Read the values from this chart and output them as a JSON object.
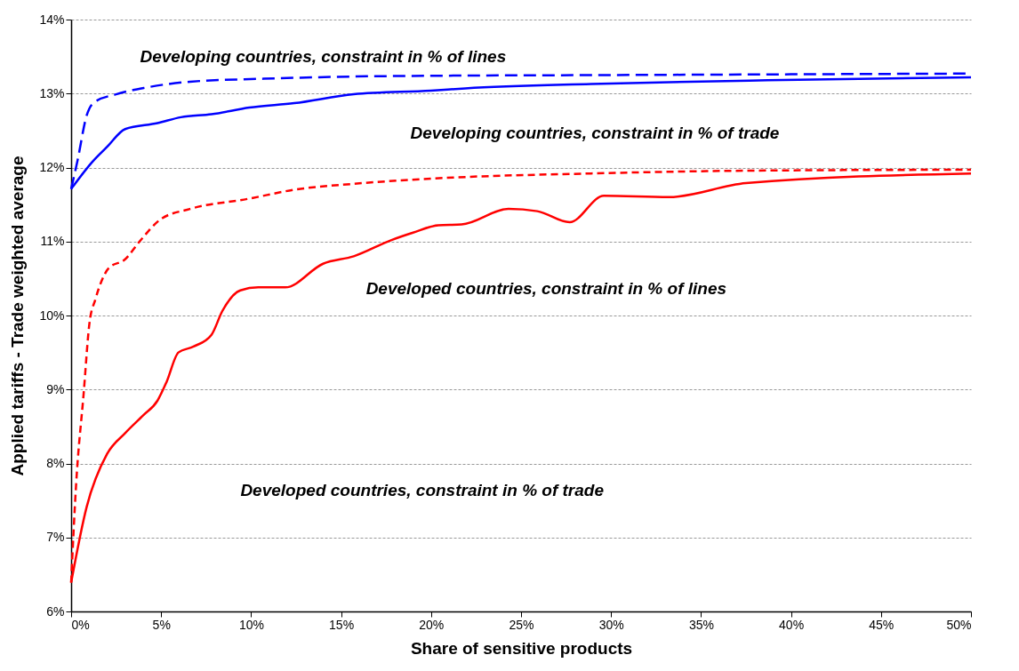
{
  "chart_data": {
    "type": "line",
    "xlabel": "Share of sensitive products",
    "ylabel": "Applied tariffs - Trade weighted average",
    "xlim": [
      0,
      50
    ],
    "xticks": [
      {
        "value": 0,
        "label": "0%"
      },
      {
        "value": 5,
        "label": "5%"
      },
      {
        "value": 10,
        "label": "10%"
      },
      {
        "value": 15,
        "label": "15%"
      },
      {
        "value": 20,
        "label": "20%"
      },
      {
        "value": 25,
        "label": "25%"
      },
      {
        "value": 30,
        "label": "30%"
      },
      {
        "value": 35,
        "label": "35%"
      },
      {
        "value": 40,
        "label": "40%"
      },
      {
        "value": 45,
        "label": "45%"
      },
      {
        "value": 50,
        "label": "50%"
      }
    ],
    "ylim": [
      6,
      14
    ],
    "yticks": [
      {
        "value": 6,
        "label": "6%"
      },
      {
        "value": 7,
        "label": "7%"
      },
      {
        "value": 8,
        "label": "8%"
      },
      {
        "value": 9,
        "label": "9%"
      },
      {
        "value": 10,
        "label": "10%"
      },
      {
        "value": 11,
        "label": "11%"
      },
      {
        "value": 12,
        "label": "12%"
      },
      {
        "value": 13,
        "label": "13%"
      },
      {
        "value": 14,
        "label": "14%"
      }
    ],
    "grid": "y",
    "marker": "none",
    "annotations": [
      "Developing countries, constraint in % of lines",
      "Developing countries, constraint in % of trade",
      "Developed countries, constraint in % of lines",
      "Developed countries, constraint in % of trade"
    ],
    "series": [
      {
        "color": "#0000ff",
        "line_style": "dashed",
        "x": [
          0,
          0.36,
          0.86,
          1.27,
          2.5,
          4.15,
          6.6,
          10.7,
          15.7,
          20,
          30,
          40,
          50
        ],
        "values": [
          11.71,
          12.1,
          12.7,
          12.88,
          12.99,
          13.08,
          13.16,
          13.2,
          13.23,
          13.24,
          13.25,
          13.26,
          13.27
        ]
      },
      {
        "color": "#0000ff",
        "line_style": "solid",
        "x": [
          0,
          1.19,
          2,
          3,
          4.8,
          6.1,
          7.8,
          9.9,
          12.4,
          15.7,
          20,
          21.9,
          28.9,
          38.7,
          50
        ],
        "values": [
          11.71,
          12.08,
          12.28,
          12.52,
          12.6,
          12.68,
          12.72,
          12.81,
          12.87,
          12.99,
          13.04,
          13.07,
          13.13,
          13.18,
          13.22
        ]
      },
      {
        "color": "#ff0000",
        "line_style": "dashed",
        "x": [
          0,
          0.28,
          0.69,
          1.02,
          1.35,
          2.09,
          3,
          3.8,
          4.97,
          6.6,
          9.9,
          12.4,
          15.7,
          20,
          28.9,
          38.7,
          50
        ],
        "values": [
          6.39,
          7.73,
          8.93,
          9.9,
          10.22,
          10.64,
          10.76,
          11,
          11.3,
          11.44,
          11.58,
          11.7,
          11.78,
          11.85,
          11.92,
          11.96,
          11.97
        ]
      },
      {
        "color": "#ff0000",
        "line_style": "solid",
        "x": [
          0,
          0.86,
          2,
          3,
          4,
          4.8,
          5.3,
          5.96,
          6.8,
          7.8,
          8.4,
          9.4,
          10.4,
          11.9,
          14,
          15.7,
          17.8,
          19,
          20.4,
          21.7,
          24.3,
          25.9,
          27.7,
          29.6,
          33.2,
          37.5,
          50
        ],
        "values": [
          6.39,
          7.41,
          8.13,
          8.41,
          8.65,
          8.85,
          9.1,
          9.5,
          9.58,
          9.74,
          10.06,
          10.34,
          10.38,
          10.38,
          10.7,
          10.8,
          11.02,
          11.12,
          11.22,
          11.23,
          11.44,
          11.41,
          11.26,
          11.62,
          11.6,
          11.79,
          11.92
        ]
      }
    ]
  }
}
